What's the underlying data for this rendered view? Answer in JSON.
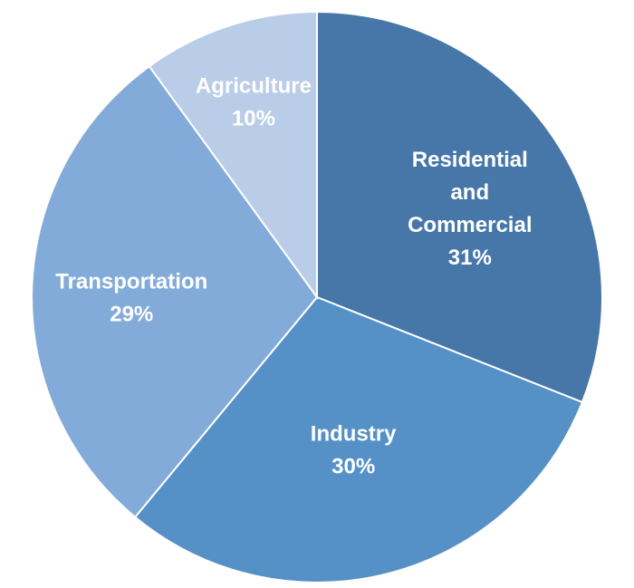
{
  "chart_data": {
    "type": "pie",
    "title": "",
    "slices": [
      {
        "label_lines": [
          "Residential",
          "and",
          "Commercial"
        ],
        "value": 31,
        "value_label": "31%",
        "color": "#4777a8"
      },
      {
        "label_lines": [
          "Industry"
        ],
        "value": 30,
        "value_label": "30%",
        "color": "#5591c6"
      },
      {
        "label_lines": [
          "Transportation"
        ],
        "value": 29,
        "value_label": "29%",
        "color": "#83abd9"
      },
      {
        "label_lines": [
          "Agriculture"
        ],
        "value": 10,
        "value_label": "10%",
        "color": "#b9cde8"
      }
    ],
    "start_angle_deg": 0,
    "direction": "clockwise"
  }
}
